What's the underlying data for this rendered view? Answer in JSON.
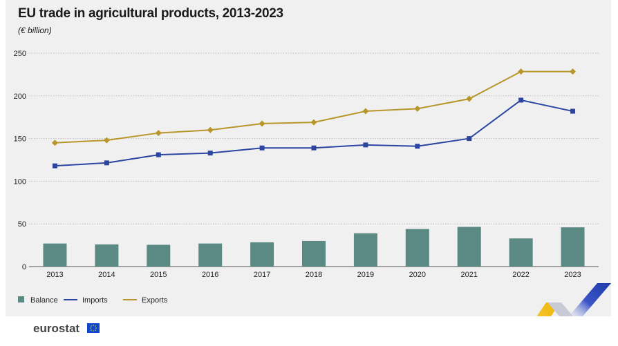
{
  "header": {
    "title": "EU trade in agricultural products, 2013-2023",
    "subtitle": "(€ billion)"
  },
  "footer": {
    "logo_text": "eurostat"
  },
  "colors": {
    "balance": "#5b8a85",
    "imports": "#2b45a0",
    "exports": "#b8962a",
    "grid": "#bdbdbd"
  },
  "chart_data": {
    "type": "bar",
    "title": "EU trade in agricultural products, 2013-2023",
    "subtitle": "(€ billion)",
    "xlabel": "",
    "ylabel": "",
    "ylim": [
      0,
      250
    ],
    "yticks": [
      0,
      50,
      100,
      150,
      200,
      250
    ],
    "grid": true,
    "legend": "bottom-left",
    "categories": [
      "2013",
      "2014",
      "2015",
      "2016",
      "2017",
      "2018",
      "2019",
      "2020",
      "2021",
      "2022",
      "2023"
    ],
    "series": [
      {
        "name": "Balance",
        "type": "bar",
        "values": [
          27,
          26,
          25.5,
          27,
          28.5,
          30,
          39,
          44,
          46.5,
          33,
          46
        ]
      },
      {
        "name": "Imports",
        "type": "line",
        "marker": "square",
        "values": [
          118,
          121.5,
          131,
          133,
          139,
          139,
          142.5,
          141,
          150,
          195,
          182
        ]
      },
      {
        "name": "Exports",
        "type": "line",
        "marker": "diamond",
        "values": [
          145,
          148,
          156.5,
          160,
          167.5,
          169,
          182,
          185,
          196.5,
          228.5,
          228.5
        ]
      }
    ]
  }
}
